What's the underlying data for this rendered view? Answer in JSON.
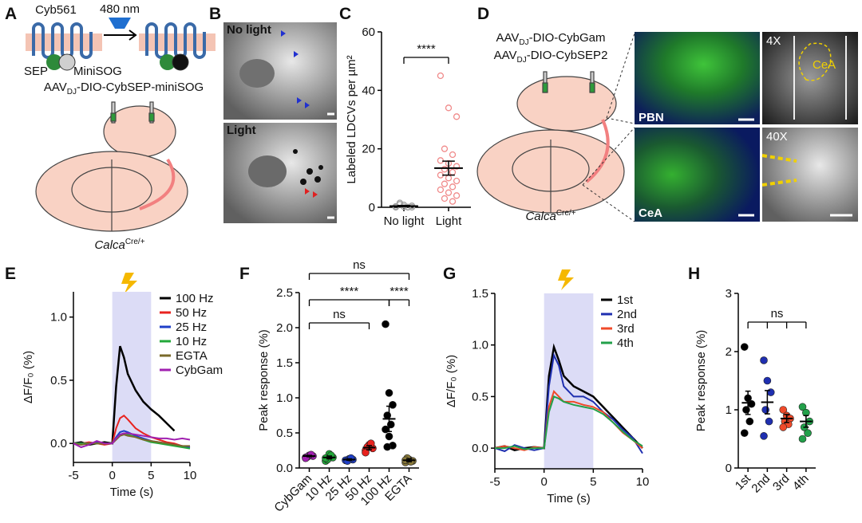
{
  "panels": [
    "A",
    "B",
    "C",
    "D",
    "E",
    "F",
    "G",
    "H"
  ],
  "diagram": {
    "a": {
      "protein": "Cyb561",
      "light": "480 nm",
      "sep": "SEP",
      "minisog": "MiniSOG",
      "virus": {
        "prefix": "AAV",
        "sub": "DJ",
        "rest": "-DIO-CybSEP-miniSOG"
      },
      "mouse": {
        "name": "Calca",
        "sup": "Cre/+"
      }
    },
    "b": {
      "top": "No light",
      "bottom": "Light"
    },
    "d": {
      "virus1": {
        "prefix": "AAV",
        "sub": "DJ",
        "rest": "-DIO-CybGam"
      },
      "virus2": {
        "prefix": "AAV",
        "sub": "DJ",
        "rest": "-DIO-CybSEP2"
      },
      "mouse": {
        "name": "Calca",
        "sup": "Cre/+"
      },
      "pbn": "PBN",
      "cea": "CeA",
      "low_mag": "4X",
      "cea_inset": "CeA",
      "high_mag": "40X"
    }
  },
  "chart_data": [
    {
      "type": "strip",
      "ylabel": "Labeled LDCVs per µm²",
      "categories": [
        "No light",
        "Light"
      ],
      "colors": [
        "#a0a0a0",
        "#f08a8a"
      ],
      "marker": "open",
      "points": [
        [
          0,
          0.2,
          0.5,
          1,
          0,
          0.3,
          0.8,
          0,
          1.5,
          0.1
        ],
        [
          45,
          34,
          31,
          20,
          18,
          16,
          15,
          14,
          13,
          12,
          11,
          10,
          9,
          8,
          7,
          6,
          5,
          4,
          3,
          2
        ]
      ],
      "means": [
        0.4,
        13.4
      ],
      "sem": [
        0.2,
        2.4
      ],
      "ylim": [
        0,
        60
      ],
      "yticks": [
        0,
        20,
        40,
        60
      ],
      "brackets": [
        {
          "from": 0,
          "to": 1,
          "label": "****"
        }
      ]
    },
    {
      "type": "line",
      "xlabel": "Time (s)",
      "ylabel": "ΔF/F₀ (%)",
      "x": [
        -5,
        -4,
        -3,
        -2,
        -1,
        0,
        0.5,
        1,
        1.5,
        2,
        3,
        4,
        5,
        6,
        7,
        8,
        9,
        10
      ],
      "stim": [
        0,
        5
      ],
      "series": [
        {
          "name": "100 Hz",
          "color": "#000000",
          "values": [
            0,
            0.01,
            -0.01,
            0,
            0.01,
            0,
            0.45,
            0.77,
            0.68,
            0.55,
            0.42,
            0.33,
            0.27,
            0.22,
            0.16,
            0.1,
            null,
            null
          ]
        },
        {
          "name": "50 Hz",
          "color": "#e8231f",
          "values": [
            0,
            0,
            0.01,
            0,
            -0.01,
            0,
            0.12,
            0.2,
            0.22,
            0.19,
            0.12,
            0.08,
            0.05,
            0.03,
            0.01,
            0,
            -0.02,
            -0.03
          ]
        },
        {
          "name": "25 Hz",
          "color": "#1f3fc8",
          "values": [
            0,
            0,
            0,
            0.01,
            0,
            0,
            0.05,
            0.09,
            0.1,
            0.09,
            0.06,
            0.04,
            0.02,
            0.01,
            0,
            -0.01,
            -0.02,
            -0.03
          ]
        },
        {
          "name": "10 Hz",
          "color": "#22a83a",
          "values": [
            0,
            0,
            0,
            0,
            0,
            0,
            0.04,
            0.07,
            0.08,
            0.07,
            0.05,
            0.03,
            0.01,
            0,
            -0.01,
            -0.02,
            -0.03,
            -0.04
          ]
        },
        {
          "name": "EGTA",
          "color": "#7a6a2a",
          "values": [
            0,
            -0.01,
            0,
            0,
            0,
            0,
            0.03,
            0.06,
            0.07,
            0.06,
            0.05,
            0.03,
            0.02,
            0.01,
            0,
            -0.01,
            -0.02,
            -0.02
          ]
        },
        {
          "name": "CybGam",
          "color": "#a020b0",
          "values": [
            0,
            -0.03,
            -0.01,
            0.02,
            0,
            0,
            0.04,
            0.07,
            0.08,
            0.08,
            0.07,
            0.06,
            0.05,
            0.04,
            0.04,
            0.03,
            0.04,
            0.03
          ]
        }
      ],
      "xlim": [
        -5,
        10
      ],
      "xticks": [
        -5,
        0,
        5,
        10
      ],
      "ylim": [
        -0.15,
        1.2
      ],
      "yticks": [
        {
          "value": 0,
          "label": "0.0"
        },
        0.5,
        {
          "value": 1,
          "label": "1.0"
        }
      ],
      "legend": "upper right"
    },
    {
      "type": "strip",
      "ylabel": "Peak response (%)",
      "categories": [
        "CybGam",
        "10 Hz",
        "25 Hz",
        "50 Hz",
        "100 Hz",
        "EGTA"
      ],
      "colors": [
        "#a020b0",
        "#22a83a",
        "#1f3fc8",
        "#e8231f",
        "#000000",
        "#8a7a3a"
      ],
      "marker": "filled",
      "points": [
        [
          0.15,
          0.18,
          0.17,
          0.16,
          0.19,
          0.14
        ],
        [
          0.1,
          0.2,
          0.15,
          0.12,
          0.18,
          0.14
        ],
        [
          0.11,
          0.13,
          0.12,
          0.1,
          0.14
        ],
        [
          0.25,
          0.33,
          0.28,
          0.3,
          0.35,
          0.22
        ],
        [
          2.05,
          1.07,
          0.9,
          0.75,
          0.62,
          0.55,
          0.45,
          0.32,
          0.3
        ],
        [
          0.08,
          0.12,
          0.1,
          0.14,
          0.09,
          0.11
        ]
      ],
      "means": [
        0.17,
        0.15,
        0.12,
        0.29,
        0.7,
        0.11
      ],
      "sem": [
        0.01,
        0.02,
        0.01,
        0.03,
        0.18,
        0.02
      ],
      "ylim": [
        0,
        2.5
      ],
      "yticks": [
        {
          "value": 0,
          "label": "0.0"
        },
        0.5,
        {
          "value": 1,
          "label": "1.0"
        },
        1.5,
        {
          "value": 2,
          "label": "2.0"
        },
        2.5
      ],
      "label_rotation": 45,
      "brackets": [
        {
          "from": 0,
          "to": 5,
          "label": "ns"
        },
        {
          "from": 0,
          "to": 4,
          "label": "****"
        },
        {
          "from": 4,
          "to": 5,
          "label": "****"
        },
        {
          "from": 0,
          "to": 3,
          "label": "ns"
        }
      ]
    },
    {
      "type": "line",
      "xlabel": "Time (s)",
      "ylabel": "ΔF/F₀ (%)",
      "x": [
        -5,
        -4,
        -3,
        -2,
        -1,
        0,
        0.5,
        1,
        1.5,
        2,
        3,
        4,
        5,
        6,
        7,
        8,
        9,
        10
      ],
      "stim": [
        0,
        5
      ],
      "series": [
        {
          "name": "1st",
          "color": "#000000",
          "values": [
            0,
            0.02,
            -0.02,
            0,
            0.01,
            0,
            0.7,
            0.98,
            0.85,
            0.7,
            0.6,
            0.55,
            0.5,
            0.4,
            0.3,
            0.2,
            0.1,
            0
          ]
        },
        {
          "name": "2nd",
          "color": "#1f2fb0",
          "values": [
            0,
            -0.03,
            0.03,
            0,
            -0.02,
            0,
            0.6,
            0.9,
            0.8,
            0.6,
            0.5,
            0.5,
            0.45,
            0.35,
            0.28,
            0.18,
            0.1,
            -0.05
          ]
        },
        {
          "name": "3rd",
          "color": "#f04a2a",
          "values": [
            0,
            0.02,
            0,
            -0.02,
            0.01,
            0,
            0.4,
            0.55,
            0.5,
            0.45,
            0.45,
            0.42,
            0.4,
            0.35,
            0.25,
            0.15,
            0.08,
            0
          ]
        },
        {
          "name": "4th",
          "color": "#22a04a",
          "values": [
            0,
            0,
            0.02,
            -0.01,
            0,
            0,
            0.35,
            0.5,
            0.48,
            0.45,
            0.42,
            0.4,
            0.38,
            0.33,
            0.25,
            0.16,
            0.08,
            0.02
          ]
        }
      ],
      "xlim": [
        -5,
        10
      ],
      "xticks": [
        -5,
        0,
        5,
        10
      ],
      "ylim": [
        -0.2,
        1.5
      ],
      "yticks": [
        {
          "value": 0,
          "label": "0.0"
        },
        0.5,
        {
          "value": 1,
          "label": "1.0"
        },
        1.5
      ],
      "legend": "upper right"
    },
    {
      "type": "strip",
      "ylabel": "Peak response (%)",
      "categories": [
        "1st",
        "2nd",
        "3rd",
        "4th"
      ],
      "colors": [
        "#000000",
        "#1f2fb0",
        "#f04a2a",
        "#22a04a"
      ],
      "marker": "filled",
      "points": [
        [
          2.08,
          1.2,
          1.1,
          1.0,
          0.8,
          0.6
        ],
        [
          1.85,
          1.5,
          1.3,
          1.0,
          0.8,
          0.55
        ],
        [
          1.0,
          0.9,
          0.85,
          0.8,
          0.75,
          0.7
        ],
        [
          1.05,
          0.95,
          0.8,
          0.7,
          0.6,
          0.5
        ]
      ],
      "means": [
        1.12,
        1.13,
        0.85,
        0.8
      ],
      "sem": [
        0.2,
        0.2,
        0.07,
        0.1
      ],
      "ylim": [
        0,
        3
      ],
      "yticks": [
        0,
        1,
        2,
        3
      ],
      "label_rotation": 45,
      "brackets": [
        {
          "from": 0,
          "to": 3,
          "label": "ns",
          "each": true
        }
      ]
    }
  ]
}
